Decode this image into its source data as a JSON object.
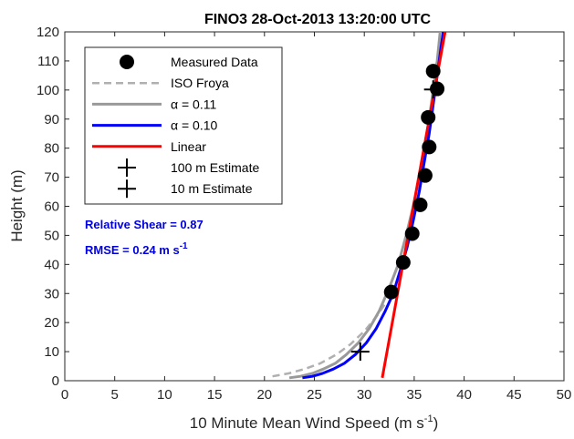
{
  "chart_data": {
    "type": "scatter",
    "title": "FINO3 28-Oct-2013 13:20:00 UTC",
    "xlabel": "10 Minute Mean Wind Speed (m s",
    "xlabel_sup": "-1",
    "xlabel_end": ")",
    "ylabel": "Height (m)",
    "xlim": [
      0,
      50
    ],
    "ylim": [
      0,
      120
    ],
    "x_ticks": [
      "0",
      "5",
      "10",
      "15",
      "20",
      "25",
      "30",
      "35",
      "40",
      "45",
      "50"
    ],
    "y_ticks": [
      "0",
      "10",
      "20",
      "30",
      "40",
      "50",
      "60",
      "70",
      "80",
      "90",
      "100",
      "110",
      "120"
    ],
    "grid": false,
    "legend_position": "top-left",
    "series": [
      {
        "name": "Measured Data",
        "kind": "markers",
        "color": "#000000",
        "points": [
          [
            32.7,
            30.5
          ],
          [
            33.9,
            40.7
          ],
          [
            34.8,
            50.6
          ],
          [
            35.6,
            60.5
          ],
          [
            36.1,
            70.6
          ],
          [
            36.5,
            80.4
          ],
          [
            36.4,
            90.6
          ],
          [
            36.9,
            106.5
          ],
          [
            37.3,
            100.4
          ]
        ]
      },
      {
        "name": "ISO Froya",
        "kind": "dashed-line",
        "color": "#b0b0b0",
        "points": [
          [
            20.8,
            1.5
          ],
          [
            22.4,
            2.5
          ],
          [
            24.0,
            4.0
          ],
          [
            25.6,
            6.0
          ],
          [
            27.2,
            9.0
          ],
          [
            28.6,
            12.5
          ],
          [
            30.0,
            17.0
          ],
          [
            31.2,
            22.0
          ],
          [
            32.2,
            27.0
          ]
        ]
      },
      {
        "name": "α = 0.11",
        "kind": "line",
        "color": "#999999",
        "points": [
          [
            22.5,
            1.0
          ],
          [
            23.6,
            1.5
          ],
          [
            24.8,
            2.5
          ],
          [
            25.9,
            4.0
          ],
          [
            27.1,
            6.0
          ],
          [
            28.2,
            9.0
          ],
          [
            29.4,
            13.0
          ],
          [
            30.5,
            18.0
          ],
          [
            31.5,
            24.0
          ],
          [
            32.5,
            32.0
          ],
          [
            33.4,
            40.0
          ],
          [
            34.2,
            50.0
          ],
          [
            34.9,
            60.0
          ],
          [
            35.5,
            70.0
          ],
          [
            36.0,
            80.0
          ],
          [
            36.5,
            90.0
          ],
          [
            36.9,
            100.0
          ],
          [
            37.3,
            110.0
          ],
          [
            37.6,
            120.0
          ]
        ]
      },
      {
        "name": "α = 0.10",
        "kind": "line",
        "color": "#0000ff",
        "points": [
          [
            23.8,
            1.0
          ],
          [
            24.8,
            1.5
          ],
          [
            25.8,
            2.5
          ],
          [
            26.9,
            4.0
          ],
          [
            28.0,
            6.0
          ],
          [
            29.1,
            9.0
          ],
          [
            30.2,
            13.0
          ],
          [
            31.2,
            18.0
          ],
          [
            32.1,
            24.0
          ],
          [
            32.9,
            30.0
          ],
          [
            33.6,
            38.0
          ],
          [
            34.3,
            46.0
          ],
          [
            34.9,
            55.0
          ],
          [
            35.5,
            65.0
          ],
          [
            36.0,
            75.0
          ],
          [
            36.5,
            85.0
          ],
          [
            36.9,
            95.0
          ],
          [
            37.3,
            105.0
          ],
          [
            37.7,
            115.0
          ],
          [
            38.0,
            122.0
          ]
        ]
      },
      {
        "name": "Linear",
        "kind": "line",
        "color": "#ff0000",
        "points": [
          [
            31.8,
            1.0
          ],
          [
            38.2,
            122.0
          ]
        ]
      },
      {
        "name": "100 m Estimate",
        "kind": "plus",
        "color": "#000000",
        "points": [
          [
            36.9,
            100.2
          ]
        ]
      },
      {
        "name": "10 m Estimate",
        "kind": "plus",
        "color": "#000000",
        "points": [
          [
            29.6,
            10.0
          ]
        ]
      }
    ],
    "annotations": [
      {
        "text": "Relative Shear = 0.87",
        "color": "#0000dd"
      },
      {
        "text": "RMSE = 0.24 m s",
        "sup": "-1",
        "color": "#0000dd"
      }
    ]
  }
}
